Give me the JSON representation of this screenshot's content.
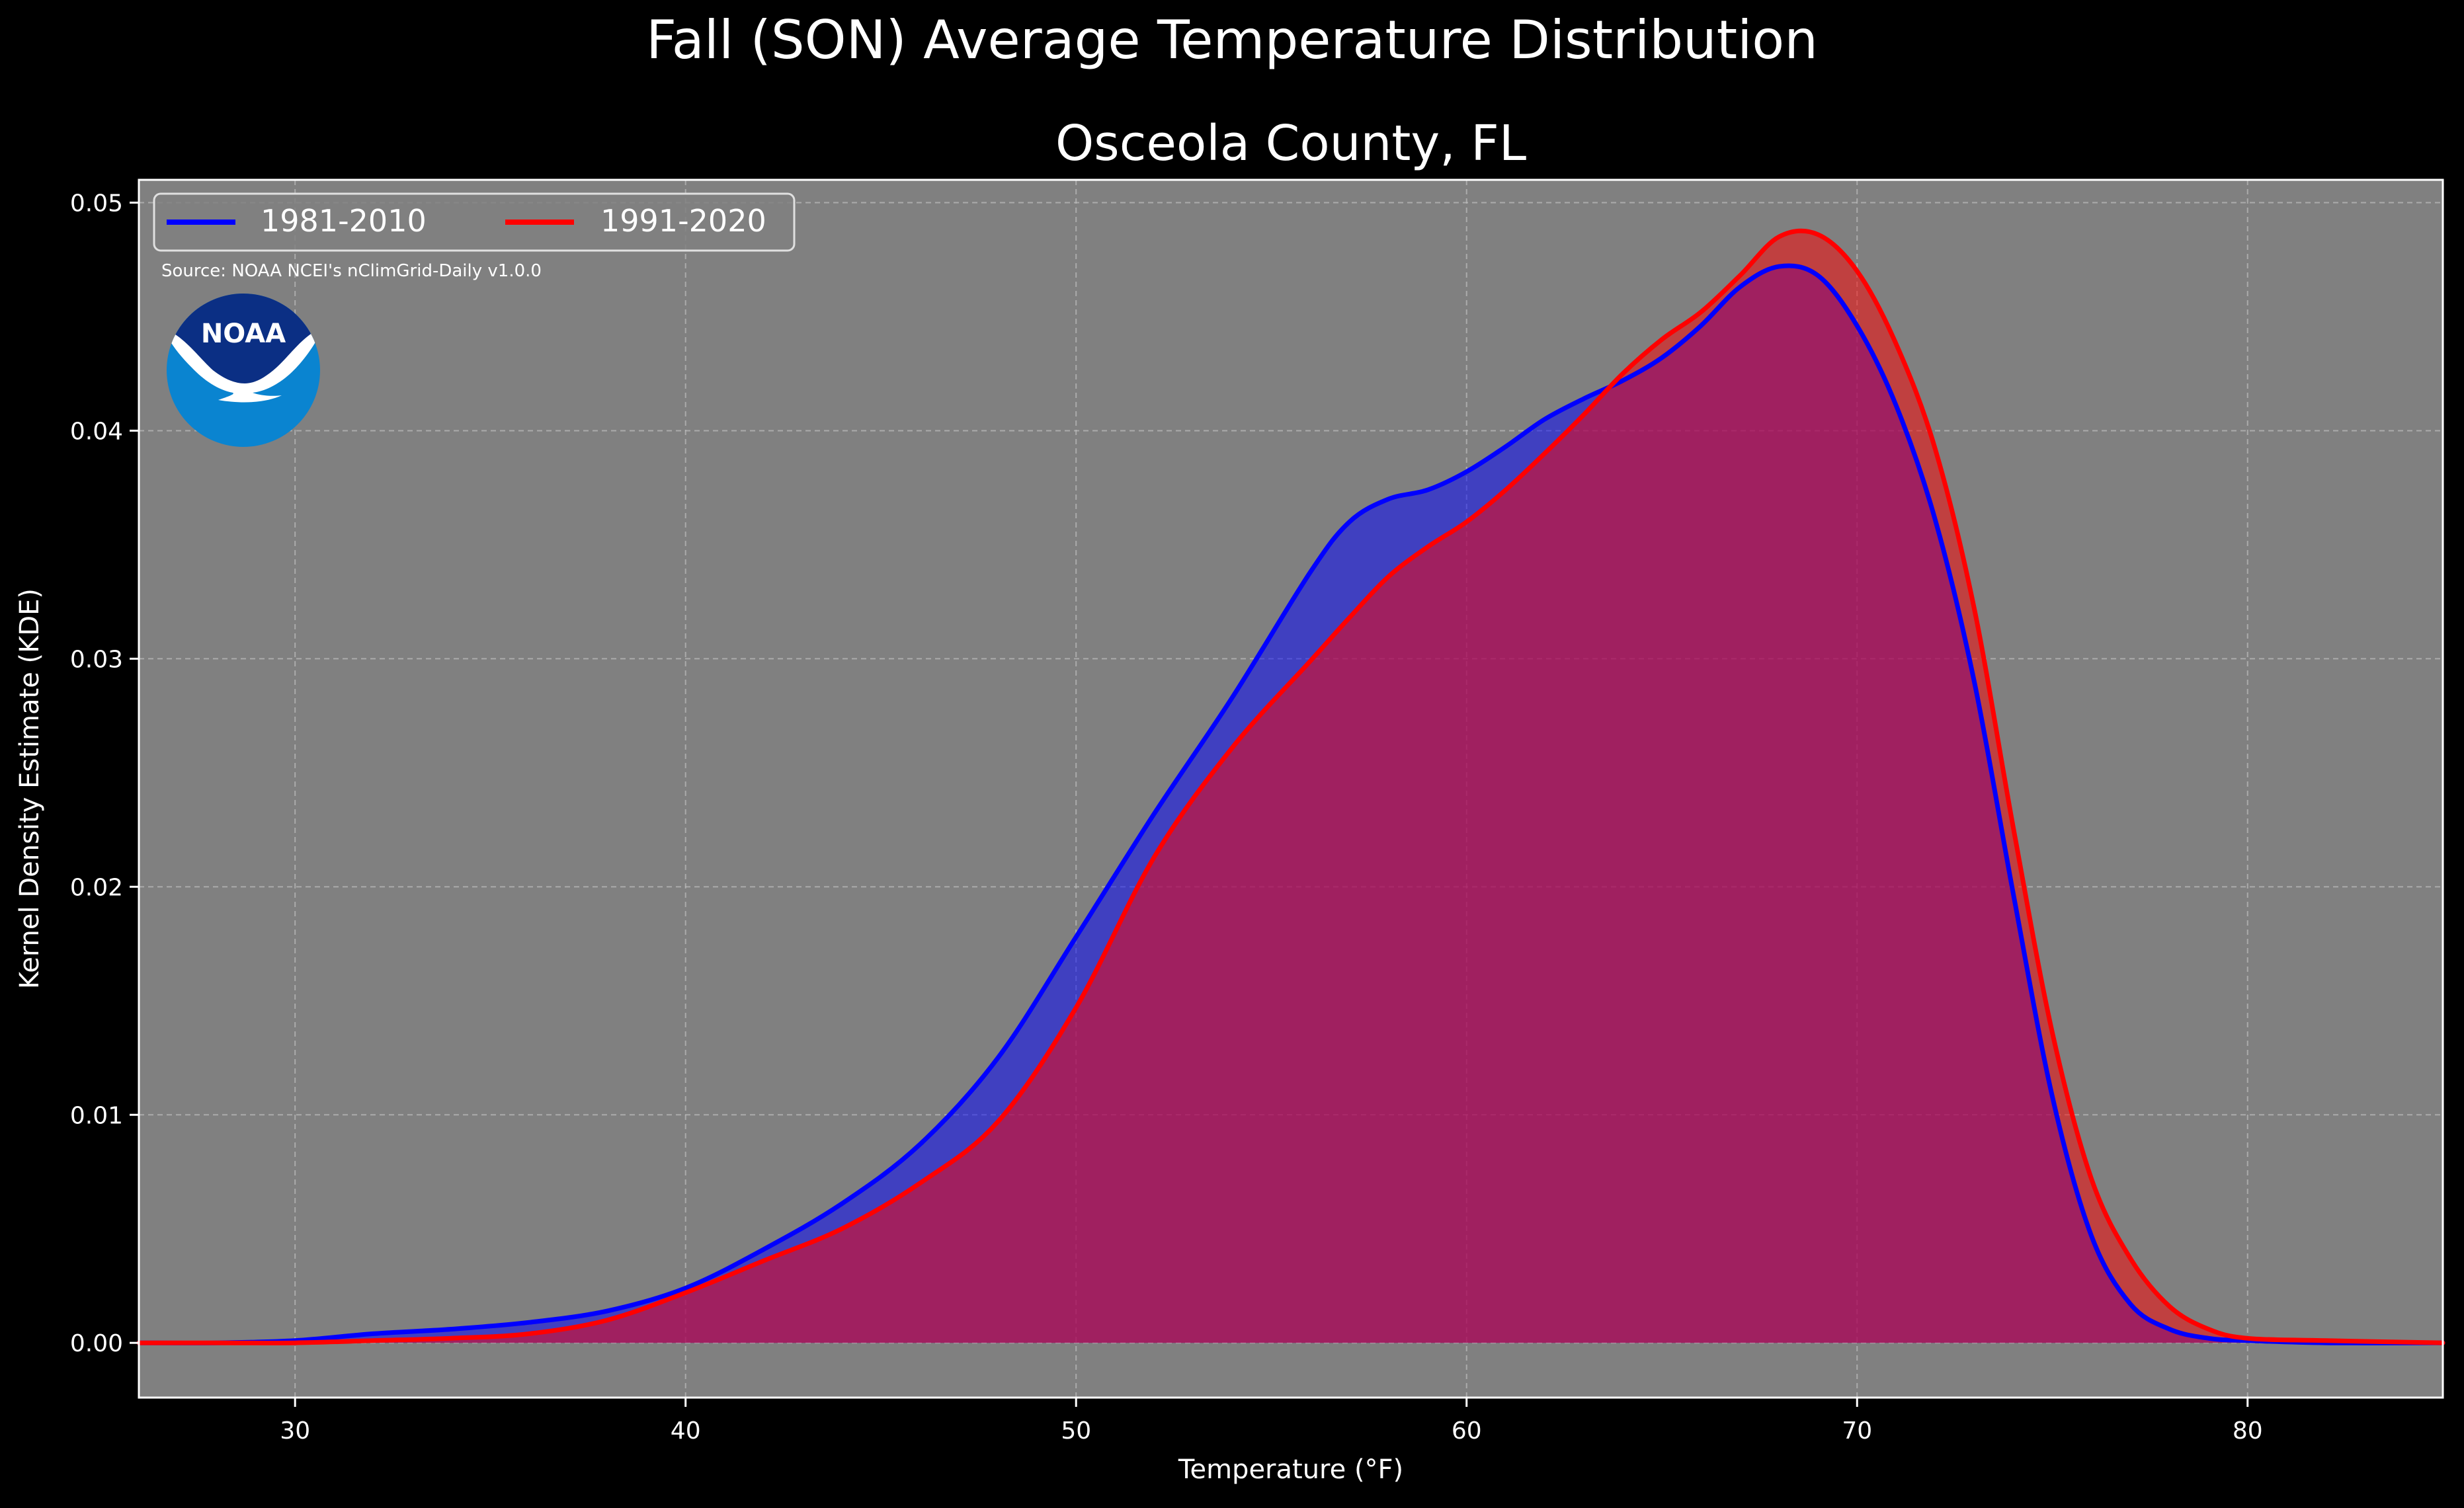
{
  "chart_data": {
    "type": "area",
    "suptitle": "Fall (SON) Average Temperature Distribution",
    "title": "Osceola County, FL",
    "xlabel": "Temperature (°F)",
    "ylabel": "Kernel Density Estimate (KDE)",
    "xlim": [
      26,
      85
    ],
    "ylim": [
      -0.0024,
      0.051
    ],
    "xticks": [
      30,
      40,
      50,
      60,
      70,
      80
    ],
    "xtick_labels": [
      "30",
      "40",
      "50",
      "60",
      "70",
      "80"
    ],
    "yticks": [
      0.0,
      0.01,
      0.02,
      0.03,
      0.04,
      0.05
    ],
    "ytick_labels": [
      "0.00",
      "0.01",
      "0.02",
      "0.03",
      "0.04",
      "0.05"
    ],
    "grid": true,
    "legend_position": "upper-left",
    "legend_columns": 2,
    "background_color": "#000000",
    "plot_background_color": "#808080",
    "source_note": "Source: NOAA NCEI's nClimGrid-Daily v1.0.0",
    "logo_text": "NOAA",
    "series": [
      {
        "name": "1981-2010",
        "color": "#0000ff",
        "fill_color": "#0000ff",
        "x": [
          26,
          28,
          30,
          32,
          34,
          36,
          38,
          40,
          42,
          44,
          46,
          48,
          50,
          52,
          54,
          56,
          57,
          58,
          59,
          60,
          61,
          62,
          63,
          64,
          65,
          66,
          67,
          68,
          69,
          70,
          71,
          72,
          73,
          74,
          75,
          76,
          77,
          78,
          79,
          80,
          82,
          85
        ],
        "y": [
          0.0,
          0.0,
          0.0001,
          0.0004,
          0.0006,
          0.0009,
          0.0014,
          0.0024,
          0.0041,
          0.0061,
          0.0087,
          0.0125,
          0.0178,
          0.0232,
          0.0283,
          0.0338,
          0.036,
          0.037,
          0.0374,
          0.0382,
          0.0393,
          0.0405,
          0.0414,
          0.0422,
          0.0432,
          0.0446,
          0.0463,
          0.0472,
          0.0468,
          0.0446,
          0.0411,
          0.0361,
          0.029,
          0.0197,
          0.0108,
          0.0047,
          0.0017,
          0.0006,
          0.0002,
          0.0001,
          0.0,
          0.0
        ]
      },
      {
        "name": "1991-2020",
        "color": "#ff0000",
        "fill_color": "#ff0000",
        "x": [
          26,
          28,
          30,
          32,
          34,
          36,
          38,
          40,
          42,
          44,
          46,
          48,
          50,
          52,
          54,
          56,
          57,
          58,
          59,
          60,
          61,
          62,
          63,
          64,
          65,
          66,
          67,
          68,
          69,
          70,
          71,
          72,
          73,
          74,
          75,
          76,
          77,
          78,
          79,
          80,
          82,
          85
        ],
        "y": [
          0.0,
          0.0,
          0.0,
          0.0001,
          0.0002,
          0.0004,
          0.001,
          0.0022,
          0.0036,
          0.005,
          0.007,
          0.0097,
          0.0147,
          0.0213,
          0.0261,
          0.0299,
          0.0318,
          0.0336,
          0.0349,
          0.036,
          0.0374,
          0.039,
          0.0407,
          0.0425,
          0.044,
          0.0452,
          0.0468,
          0.0485,
          0.0486,
          0.047,
          0.0438,
          0.0392,
          0.0322,
          0.0226,
          0.0136,
          0.0072,
          0.0037,
          0.0016,
          0.0006,
          0.0002,
          0.0001,
          0.0
        ]
      }
    ]
  }
}
